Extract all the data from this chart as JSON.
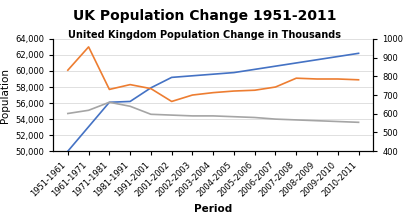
{
  "title": "UK Population Change 1951-2011",
  "subtitle": "United Kingdom Population Change in Thousands",
  "xlabel": "Period",
  "ylabel": "Population",
  "categories": [
    "1951-1961",
    "1961-1971",
    "1971-1981",
    "1981-1991",
    "1991-2001",
    "2001-2002",
    "2002-2003",
    "2003-2004",
    "2004-2005",
    "2005-2006",
    "2006-2007",
    "2007-2008",
    "2008-2009",
    "2009-2010",
    "2010-2011"
  ],
  "blue_line": [
    50000,
    null,
    56100,
    56200,
    57900,
    59200,
    59400,
    59600,
    59800,
    60200,
    60600,
    61000,
    61400,
    61800,
    62200
  ],
  "orange_line": [
    60100,
    63000,
    57700,
    58300,
    57800,
    56200,
    57000,
    57300,
    57500,
    57600,
    58000,
    59100,
    59000,
    59000,
    58900
  ],
  "gray_line": [
    54700,
    55100,
    56100,
    55600,
    54600,
    54500,
    54400,
    54400,
    54300,
    54200,
    54000,
    53900,
    53800,
    53700,
    53600
  ],
  "ylim_left": [
    50000,
    64000
  ],
  "ylim_right": [
    400,
    1000
  ],
  "yticks_left": [
    50000,
    52000,
    54000,
    56000,
    58000,
    60000,
    62000,
    64000
  ],
  "yticks_right": [
    400,
    500,
    600,
    700,
    800,
    900,
    1000
  ],
  "blue_color": "#4472C4",
  "orange_color": "#ED7D31",
  "gray_color": "#A5A5A5",
  "bg_color": "#FFFFFF",
  "title_fontsize": 10,
  "subtitle_fontsize": 7,
  "label_fontsize": 7.5,
  "tick_fontsize": 6
}
